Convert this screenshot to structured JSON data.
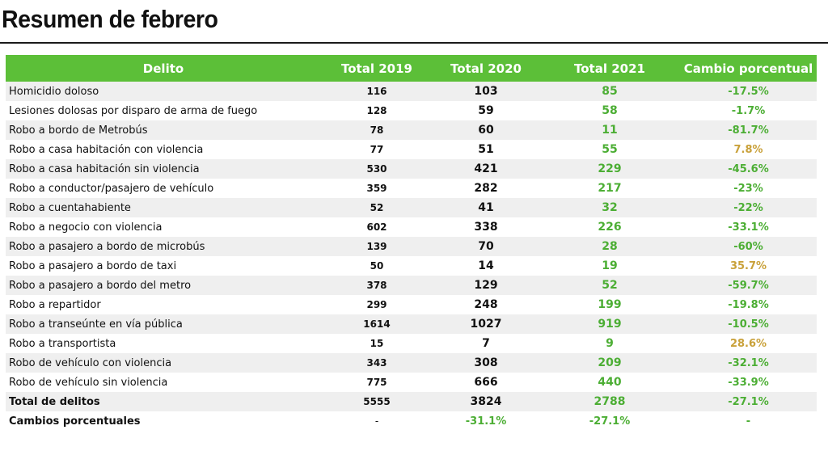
{
  "title": "Resumen de febrero",
  "columns": [
    "Delito",
    "Total 2019",
    "Total 2020",
    "Total 2021",
    "Cambio porcentual"
  ],
  "rows": [
    {
      "delito": "Homicidio doloso",
      "t2019": "116",
      "t2020": "103",
      "t2021": "85",
      "cambio": "-17.5%"
    },
    {
      "delito": "Lesiones dolosas por disparo de arma de fuego",
      "t2019": "128",
      "t2020": "59",
      "t2021": "58",
      "cambio": "-1.7%"
    },
    {
      "delito": "Robo a bordo de Metrobús",
      "t2019": "78",
      "t2020": "60",
      "t2021": "11",
      "cambio": "-81.7%"
    },
    {
      "delito": "Robo a casa habitación con violencia",
      "t2019": "77",
      "t2020": "51",
      "t2021": "55",
      "cambio": "7.8%"
    },
    {
      "delito": "Robo a casa habitación sin violencia",
      "t2019": "530",
      "t2020": "421",
      "t2021": "229",
      "cambio": "-45.6%"
    },
    {
      "delito": "Robo a conductor/pasajero de vehículo",
      "t2019": "359",
      "t2020": "282",
      "t2021": "217",
      "cambio": "-23%"
    },
    {
      "delito": "Robo a cuentahabiente",
      "t2019": "52",
      "t2020": "41",
      "t2021": "32",
      "cambio": "-22%"
    },
    {
      "delito": "Robo a negocio con violencia",
      "t2019": "602",
      "t2020": "338",
      "t2021": "226",
      "cambio": "-33.1%"
    },
    {
      "delito": "Robo a pasajero a bordo de microbús",
      "t2019": "139",
      "t2020": "70",
      "t2021": "28",
      "cambio": "-60%"
    },
    {
      "delito": "Robo a pasajero a bordo de taxi",
      "t2019": "50",
      "t2020": "14",
      "t2021": "19",
      "cambio": "35.7%"
    },
    {
      "delito": "Robo a pasajero a bordo del metro",
      "t2019": "378",
      "t2020": "129",
      "t2021": "52",
      "cambio": "-59.7%"
    },
    {
      "delito": "Robo a repartidor",
      "t2019": "299",
      "t2020": "248",
      "t2021": "199",
      "cambio": "-19.8%"
    },
    {
      "delito": "Robo a transeúnte en vía pública",
      "t2019": "1614",
      "t2020": "1027",
      "t2021": "919",
      "cambio": "-10.5%"
    },
    {
      "delito": "Robo a transportista",
      "t2019": "15",
      "t2020": "7",
      "t2021": "9",
      "cambio": "28.6%"
    },
    {
      "delito": "Robo de vehículo con violencia",
      "t2019": "343",
      "t2020": "308",
      "t2021": "209",
      "cambio": "-32.1%"
    },
    {
      "delito": "Robo de vehículo sin violencia",
      "t2019": "775",
      "t2020": "666",
      "t2021": "440",
      "cambio": "-33.9%"
    }
  ],
  "total": {
    "delito": "Total de delitos",
    "t2019": "5555",
    "t2020": "3824",
    "t2021": "2788",
    "cambio": "-27.1%"
  },
  "cambios": {
    "delito": "Cambios porcentuales",
    "t2019": "-",
    "t2020": "-31.1%",
    "t2021": "-27.1%",
    "cambio": "-"
  },
  "colors": {
    "header_green": "#5cbf38",
    "decrease_green": "#4cae34",
    "increase_gold": "#c9a13a",
    "stripe": "#efefef"
  }
}
